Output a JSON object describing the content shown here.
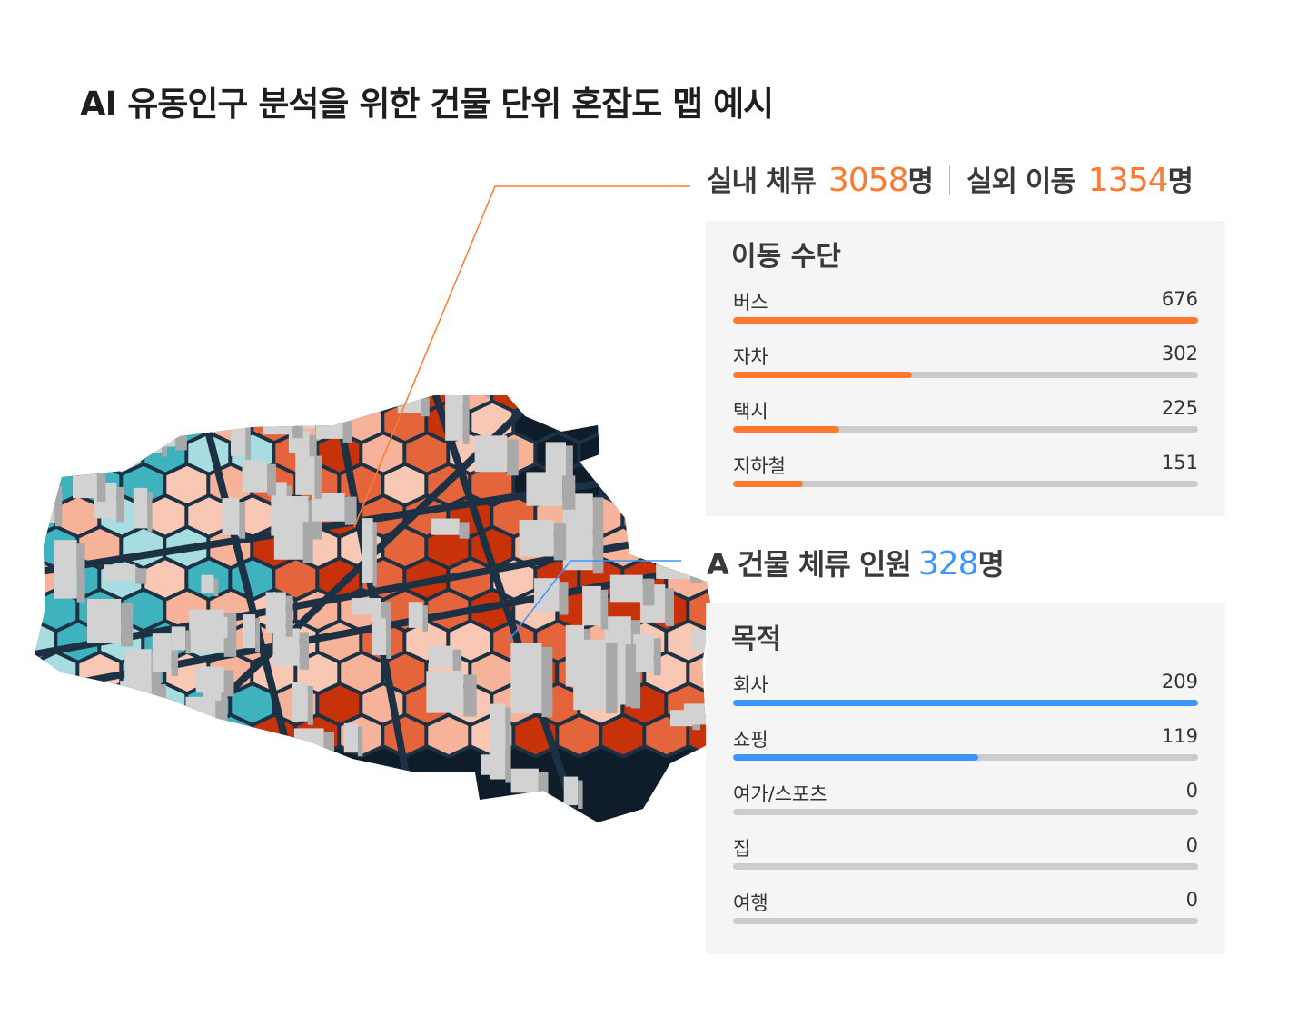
{
  "title": "AI 유동인구 분석을 위한 건물 단위 혼잡도 맵 예시",
  "summary": {
    "indoor_label": "실내 체류",
    "indoor_value": "3058",
    "outdoor_label": "실외 이동",
    "outdoor_value": "1354",
    "unit": "명"
  },
  "transport": {
    "heading": "이동 수단",
    "color": "#ff7a30",
    "items": [
      {
        "label": "버스",
        "value": "676",
        "fill": 1.0
      },
      {
        "label": "자차",
        "value": "302",
        "fill": 0.385
      },
      {
        "label": "택시",
        "value": "225",
        "fill": 0.229
      },
      {
        "label": "지하철",
        "value": "151",
        "fill": 0.15
      }
    ]
  },
  "building": {
    "label": "A 건물 체류 인원",
    "value": "328",
    "unit": "명",
    "color": "#3d95ff"
  },
  "purpose": {
    "heading": "목적",
    "color": "#3d95ff",
    "items": [
      {
        "label": "회사",
        "value": "209",
        "fill": 1.0
      },
      {
        "label": "쇼핑",
        "value": "119",
        "fill": 0.527
      },
      {
        "label": "여가/스포츠",
        "value": "0",
        "fill": 0
      },
      {
        "label": "집",
        "value": "0",
        "fill": 0
      },
      {
        "label": "여행",
        "value": "0",
        "fill": 0
      }
    ]
  },
  "map_colors": {
    "road": "#1c3244",
    "background": "#0f1d2a",
    "high": "#c8320a",
    "mid": "#e4643c",
    "low": "#f7b39a",
    "lowest": "#f9c8b4",
    "cool": "#3fb3bd",
    "cool_light": "#a7dde0",
    "building": "#d2d2d2"
  }
}
